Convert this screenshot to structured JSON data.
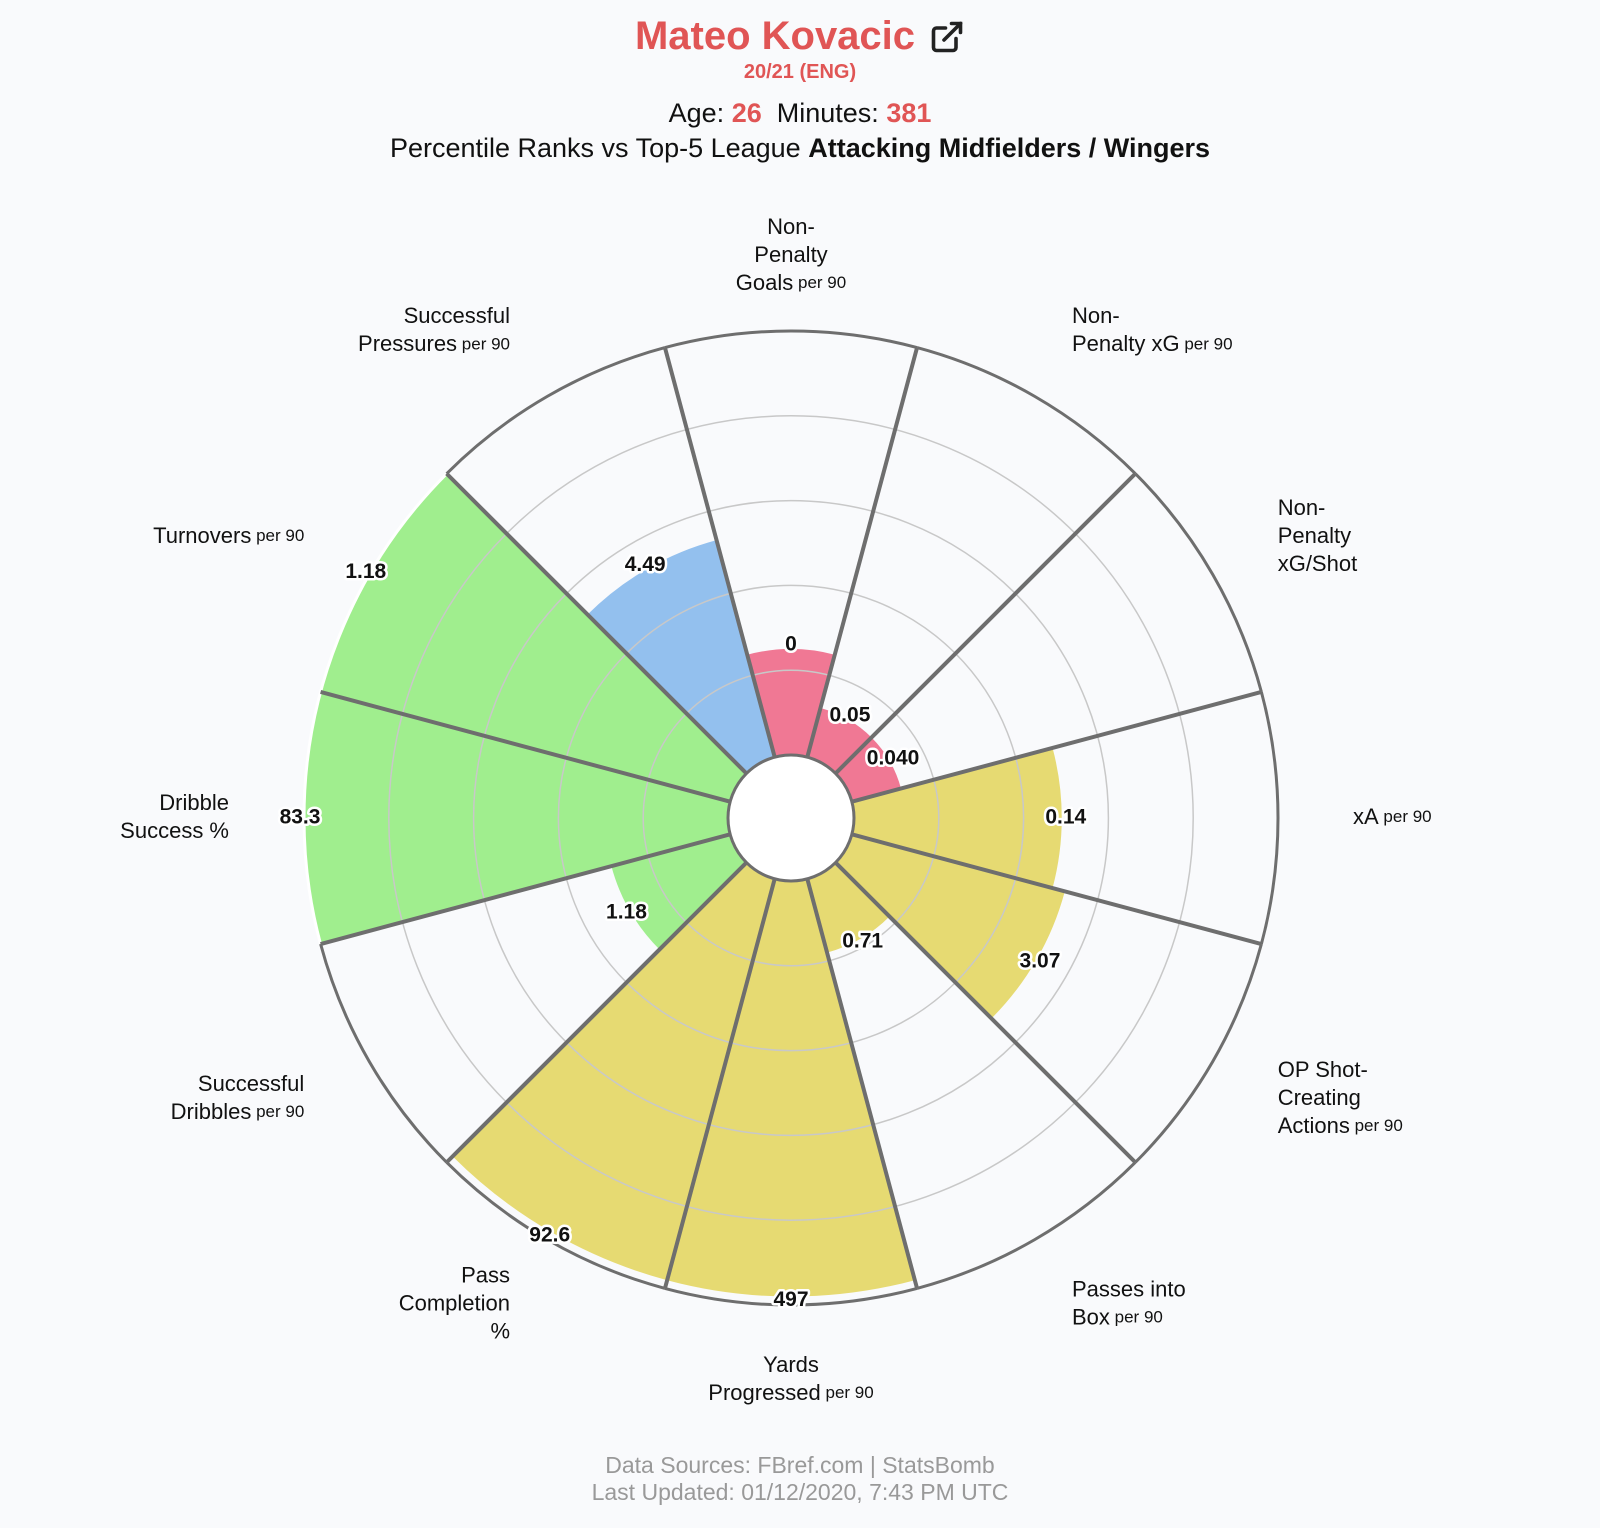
{
  "header": {
    "player_name": "Mateo Kovacic",
    "season": "20/21 (ENG)",
    "age_label": "Age:",
    "age": "26",
    "minutes_label": "Minutes:",
    "minutes": "381",
    "subtitle_prefix": "Percentile Ranks vs Top-5 League",
    "subtitle_group": "Attacking Midfielders / Wingers",
    "icon": "external-link-icon"
  },
  "footer": {
    "sources": "Data Sources: FBref.com | StatsBomb",
    "updated": "Last Updated: 01/12/2020, 7:43 PM UTC"
  },
  "colors": {
    "accent": "#e05555",
    "attacking": "#f07894",
    "possession": "#e6da72",
    "dribbling": "#a0ee8e",
    "defending": "#93c0ee",
    "spokes": "#6e6e6e",
    "grid": "#c8c8c8"
  },
  "chart_data": {
    "type": "polar-bar",
    "scale": "percentile",
    "rlim": [
      0,
      100
    ],
    "grid_rings": [
      20,
      40,
      60,
      80,
      100
    ],
    "categories": [
      {
        "lines": [
          "Non-",
          "Penalty",
          "Goals"
        ],
        "unit": "per 90",
        "value": "0",
        "percentile": 25,
        "group": "attacking"
      },
      {
        "lines": [
          "Non-",
          "Penalty xG"
        ],
        "unit": "per 90",
        "value": "0.05",
        "percentile": 12,
        "group": "attacking"
      },
      {
        "lines": [
          "Non-",
          "Penalty",
          "xG/Shot"
        ],
        "unit": "",
        "value": "0.040",
        "percentile": 12,
        "group": "attacking"
      },
      {
        "lines": [
          "xA"
        ],
        "unit": "per 90",
        "value": "0.14",
        "percentile": 49,
        "group": "possession"
      },
      {
        "lines": [
          "OP Shot-",
          "Creating",
          "Actions"
        ],
        "unit": "per 90",
        "value": "3.07",
        "percentile": 52,
        "group": "possession"
      },
      {
        "lines": [
          "Passes into",
          "Box"
        ],
        "unit": "per 90",
        "value": "0.71",
        "percentile": 18,
        "group": "possession"
      },
      {
        "lines": [
          "Yards",
          "Progressed"
        ],
        "unit": "per 90",
        "value": "497",
        "percentile": 98,
        "group": "possession"
      },
      {
        "lines": [
          "Pass",
          "Completion",
          "%"
        ],
        "unit": "",
        "value": "92.6",
        "percentile": 98,
        "group": "possession"
      },
      {
        "lines": [
          "Successful",
          "Dribbles"
        ],
        "unit": "per 90",
        "value": "1.18",
        "percentile": 29,
        "group": "dribbling"
      },
      {
        "lines": [
          "Dribble",
          "Success %"
        ],
        "unit": "",
        "value": "83.3",
        "percentile": 100,
        "group": "dribbling"
      },
      {
        "lines": [
          "Turnovers"
        ],
        "unit": "per 90",
        "value": "1.18",
        "percentile": 100,
        "group": "dribbling"
      },
      {
        "lines": [
          "Successful",
          "Pressures"
        ],
        "unit": "per 90",
        "value": "4.49",
        "percentile": 53,
        "group": "defending"
      }
    ]
  }
}
